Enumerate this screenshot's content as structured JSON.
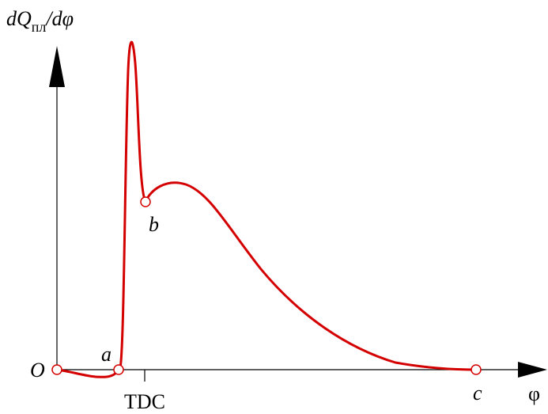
{
  "y_axis_label": {
    "main": "dQ",
    "subscript": "пл",
    "rest": "/dφ"
  },
  "x_axis_label": "φ",
  "tick_label": "TDC",
  "points": {
    "origin": "O",
    "a": "a",
    "b": "b",
    "c": "c"
  }
}
